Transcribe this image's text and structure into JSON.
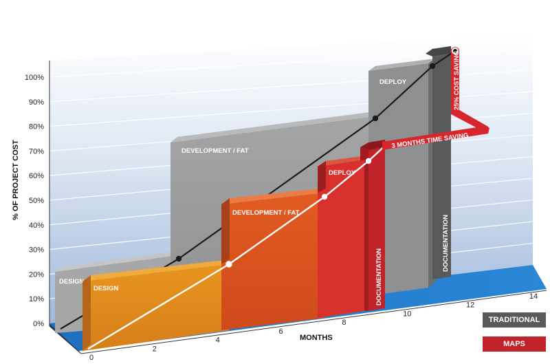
{
  "chart_data": {
    "type": "bar",
    "xlabel": "MONTHS",
    "ylabel": "% OF PROJECT COST",
    "x_ticks": [
      "0",
      "2",
      "4",
      "6",
      "8",
      "10",
      "12",
      "14"
    ],
    "y_ticks": [
      "0%",
      "10%",
      "20%",
      "30%",
      "40%",
      "50%",
      "60%",
      "70%",
      "80%",
      "90%",
      "100%"
    ],
    "xlim": [
      0,
      14
    ],
    "ylim": [
      0,
      100
    ],
    "series": [
      {
        "name": "TRADITIONAL",
        "color": "#9a9b9d",
        "phases": [
          {
            "label": "DESIGN",
            "start": 0,
            "end": 4,
            "value": 20
          },
          {
            "label": "DEVELOPMENT / FAT",
            "start": 4,
            "end": 10,
            "value": 72
          },
          {
            "label": "DEPLOY",
            "start": 10,
            "end": 11.5,
            "value": 100
          },
          {
            "label": "DOCUMENTATION",
            "start": 11.5,
            "end": 12.2,
            "value": 103
          }
        ],
        "cumulative_line": [
          [
            0,
            0
          ],
          [
            4,
            25
          ],
          [
            10,
            81
          ],
          [
            12.2,
            100
          ]
        ]
      },
      {
        "name": "MAPS",
        "color": "#d42a2f",
        "phases": [
          {
            "label": "DESIGN",
            "start": 0,
            "end": 4.5,
            "value": 20
          },
          {
            "label": "DEVELOPMENT / FAT",
            "start": 4.5,
            "end": 7.5,
            "value": 50
          },
          {
            "label": "DEPLOY",
            "start": 7.5,
            "end": 8.5,
            "value": 61
          },
          {
            "label": "DOCUMENTATION",
            "start": 8.5,
            "end": 9.0,
            "value": 66
          }
        ],
        "cumulative_line": [
          [
            0,
            0
          ],
          [
            4.5,
            24
          ],
          [
            7.5,
            52
          ],
          [
            8.5,
            66
          ],
          [
            9.0,
            71
          ]
        ]
      }
    ],
    "annotations": [
      "3 MONTHS TIME SAVING",
      "25% COST SAVING"
    ],
    "legend": {
      "placement": "bottom-right",
      "entries": [
        "TRADITIONAL",
        "MAPS"
      ]
    },
    "grid": true
  },
  "colors": {
    "traditional": "#9a9b9d",
    "traditional_dark": "#58595b",
    "maps_red": "#d42a2f",
    "design_orange": "#e08a1e",
    "dev_orange": "#d9521f",
    "floor_blue": "#1f72c0",
    "wall_blue": "#b7cce6"
  }
}
